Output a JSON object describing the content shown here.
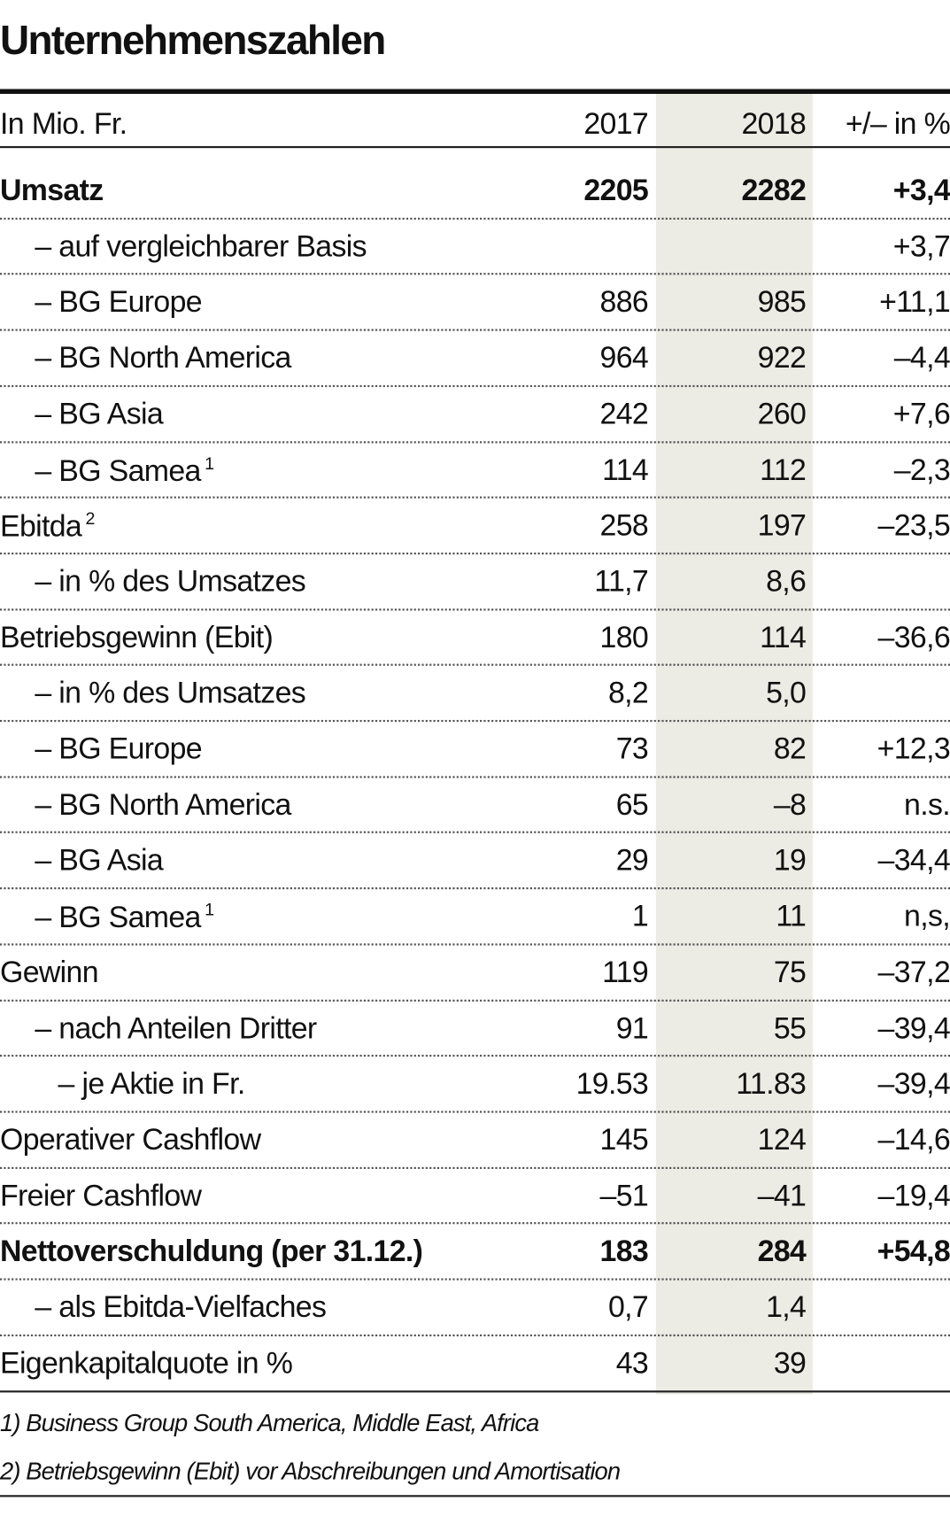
{
  "title": "Unternehmenszahlen",
  "table": {
    "header": [
      "In Mio. Fr.",
      "2017",
      "2018",
      "+/– in %"
    ],
    "rows": [
      {
        "label": "Umsatz",
        "values": [
          "2205",
          "2282",
          "+3,4"
        ]
      },
      {
        "label": "– auf vergleichbarer Basis",
        "values": [
          null,
          null,
          "+3,7"
        ]
      },
      {
        "label": "– BG Europe",
        "values": [
          "886",
          "985",
          "+11,1"
        ]
      },
      {
        "label": "– BG North America",
        "values": [
          "964",
          "922",
          "–4,4"
        ]
      },
      {
        "label": "– BG Asia",
        "values": [
          "242",
          "260",
          "+7,6"
        ]
      },
      {
        "label": "– BG Samea",
        "sup": "1",
        "values": [
          "114",
          "112",
          "–2,3"
        ]
      },
      {
        "label": "Ebitda",
        "sup": "2",
        "values": [
          "258",
          "197",
          "–23,5"
        ]
      },
      {
        "label": "– in % des Umsatzes",
        "values": [
          "11,7",
          "8,6",
          null
        ]
      },
      {
        "label": "Betriebsgewinn (Ebit)",
        "values": [
          "180",
          "114",
          "–36,6"
        ]
      },
      {
        "label": "– in % des Umsatzes",
        "values": [
          "8,2",
          "5,0",
          null
        ]
      },
      {
        "label": "– BG Europe",
        "values": [
          "73",
          "82",
          "+12,3"
        ]
      },
      {
        "label": "– BG North America",
        "values": [
          "65",
          "–8",
          "n.s."
        ]
      },
      {
        "label": "– BG Asia",
        "values": [
          "29",
          "19",
          "–34,4"
        ]
      },
      {
        "label": "– BG Samea",
        "sup": "1",
        "values": [
          "1",
          "11",
          "n,s,"
        ]
      },
      {
        "label": "Gewinn",
        "values": [
          "119",
          "75",
          "–37,2"
        ]
      },
      {
        "label": "– nach Anteilen Dritter",
        "values": [
          "91",
          "55",
          "–39,4"
        ]
      },
      {
        "label": "– je Aktie in Fr.",
        "values": [
          "19.53",
          "11.83",
          "–39,4"
        ]
      },
      {
        "label": "Operativer Cashflow",
        "values": [
          "145",
          "124",
          "–14,6"
        ]
      },
      {
        "label": "Freier Cashflow",
        "values": [
          "–51",
          "–41",
          "–19,4"
        ]
      },
      {
        "label": "Nettoverschuldung (per 31.12.)",
        "values": [
          "183",
          "284",
          "+54,8"
        ]
      },
      {
        "label": "– als Ebitda-Vielfaches",
        "values": [
          "0,7",
          "1,4",
          null
        ]
      },
      {
        "label": "Eigenkapitalquote in %",
        "values": [
          "43",
          "39",
          null
        ]
      }
    ]
  },
  "footnotes": [
    "1) Business Group South America, Middle East, Africa",
    "2) Betriebsgewinn (Ebit) vor Abschreibungen und Amortisation"
  ]
}
